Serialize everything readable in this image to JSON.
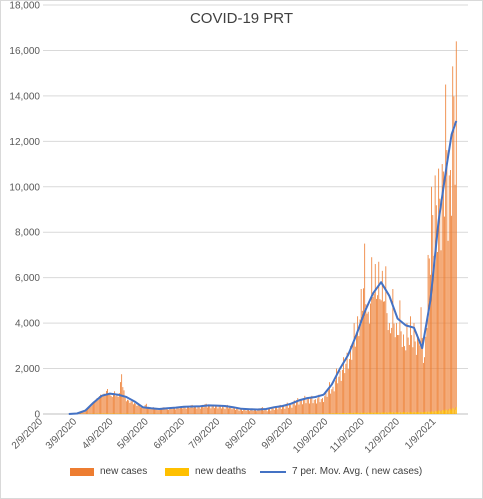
{
  "chart_data": {
    "type": "bar",
    "title": "COVID-19 PRT",
    "ylim": [
      0,
      18000
    ],
    "y_ticks": [
      "0",
      "2,000",
      "4,000",
      "6,000",
      "8,000",
      "10,000",
      "12,000",
      "14,000",
      "16,000",
      "18,000"
    ],
    "x_ticks": [
      "2/9/2020",
      "3/9/2020",
      "4/9/2020",
      "5/9/2020",
      "6/9/2020",
      "7/9/2020",
      "8/9/2020",
      "9/9/2020",
      "10/9/2020",
      "11/9/2020",
      "12/9/2020",
      "1/9/2021"
    ],
    "grid": true,
    "legend_position": "bottom",
    "series": [
      {
        "name": "new cases",
        "kind": "bar",
        "color": "#ed7d31",
        "points": [
          [
            "2020-03-02",
            0
          ],
          [
            "2020-03-05",
            5
          ],
          [
            "2020-03-08",
            20
          ],
          [
            "2020-03-11",
            40
          ],
          [
            "2020-03-14",
            80
          ],
          [
            "2020-03-17",
            150
          ],
          [
            "2020-03-20",
            350
          ],
          [
            "2020-03-23",
            550
          ],
          [
            "2020-03-26",
            700
          ],
          [
            "2020-03-29",
            850
          ],
          [
            "2020-04-01",
            900
          ],
          [
            "2020-04-04",
            1100
          ],
          [
            "2020-04-07",
            800
          ],
          [
            "2020-04-10",
            1000
          ],
          [
            "2020-04-13",
            750
          ],
          [
            "2020-04-16",
            1750
          ],
          [
            "2020-04-19",
            700
          ],
          [
            "2020-04-22",
            600
          ],
          [
            "2020-04-25",
            550
          ],
          [
            "2020-04-28",
            450
          ],
          [
            "2020-05-01",
            400
          ],
          [
            "2020-05-04",
            300
          ],
          [
            "2020-05-07",
            450
          ],
          [
            "2020-05-10",
            250
          ],
          [
            "2020-05-13",
            300
          ],
          [
            "2020-05-16",
            200
          ],
          [
            "2020-05-19",
            250
          ],
          [
            "2020-05-22",
            300
          ],
          [
            "2020-05-25",
            200
          ],
          [
            "2020-05-28",
            300
          ],
          [
            "2020-05-31",
            250
          ],
          [
            "2020-06-03",
            300
          ],
          [
            "2020-06-06",
            350
          ],
          [
            "2020-06-09",
            300
          ],
          [
            "2020-06-12",
            350
          ],
          [
            "2020-06-15",
            400
          ],
          [
            "2020-06-18",
            350
          ],
          [
            "2020-06-21",
            300
          ],
          [
            "2020-06-24",
            400
          ],
          [
            "2020-06-27",
            450
          ],
          [
            "2020-06-30",
            350
          ],
          [
            "2020-07-03",
            400
          ],
          [
            "2020-07-06",
            350
          ],
          [
            "2020-07-09",
            400
          ],
          [
            "2020-07-12",
            300
          ],
          [
            "2020-07-15",
            400
          ],
          [
            "2020-07-18",
            350
          ],
          [
            "2020-07-21",
            300
          ],
          [
            "2020-07-24",
            250
          ],
          [
            "2020-07-27",
            200
          ],
          [
            "2020-07-30",
            250
          ],
          [
            "2020-08-02",
            200
          ],
          [
            "2020-08-05",
            250
          ],
          [
            "2020-08-08",
            200
          ],
          [
            "2020-08-11",
            250
          ],
          [
            "2020-08-14",
            300
          ],
          [
            "2020-08-17",
            200
          ],
          [
            "2020-08-20",
            250
          ],
          [
            "2020-08-23",
            300
          ],
          [
            "2020-08-26",
            350
          ],
          [
            "2020-08-29",
            400
          ],
          [
            "2020-09-01",
            350
          ],
          [
            "2020-09-04",
            500
          ],
          [
            "2020-09-07",
            400
          ],
          [
            "2020-09-10",
            600
          ],
          [
            "2020-09-13",
            700
          ],
          [
            "2020-09-16",
            650
          ],
          [
            "2020-09-19",
            800
          ],
          [
            "2020-09-22",
            700
          ],
          [
            "2020-09-25",
            800
          ],
          [
            "2020-09-28",
            650
          ],
          [
            "2020-10-01",
            850
          ],
          [
            "2020-10-04",
            700
          ],
          [
            "2020-10-07",
            1000
          ],
          [
            "2020-10-10",
            1400
          ],
          [
            "2020-10-13",
            1200
          ],
          [
            "2020-10-16",
            2000
          ],
          [
            "2020-10-19",
            1900
          ],
          [
            "2020-10-22",
            2500
          ],
          [
            "2020-10-25",
            2700
          ],
          [
            "2020-10-28",
            3000
          ],
          [
            "2020-10-31",
            4000
          ],
          [
            "2020-11-03",
            4300
          ],
          [
            "2020-11-06",
            5500
          ],
          [
            "2020-11-09",
            7500
          ],
          [
            "2020-11-12",
            4500
          ],
          [
            "2020-11-15",
            6900
          ],
          [
            "2020-11-18",
            6600
          ],
          [
            "2020-11-21",
            6700
          ],
          [
            "2020-11-24",
            6300
          ],
          [
            "2020-11-27",
            6500
          ],
          [
            "2020-11-30",
            4000
          ],
          [
            "2020-12-03",
            5500
          ],
          [
            "2020-12-06",
            4000
          ],
          [
            "2020-12-09",
            5000
          ],
          [
            "2020-12-12",
            3500
          ],
          [
            "2020-12-15",
            4000
          ],
          [
            "2020-12-18",
            4300
          ],
          [
            "2020-12-21",
            4000
          ],
          [
            "2020-12-24",
            3500
          ],
          [
            "2020-12-27",
            4700
          ],
          [
            "2020-12-30",
            2500
          ],
          [
            "2021-01-02",
            7000
          ],
          [
            "2021-01-05",
            10000
          ],
          [
            "2021-01-08",
            10500
          ],
          [
            "2021-01-11",
            10800
          ],
          [
            "2021-01-14",
            11000
          ],
          [
            "2021-01-17",
            14500
          ],
          [
            "2021-01-20",
            10500
          ],
          [
            "2021-01-23",
            15300
          ],
          [
            "2021-01-26",
            16400
          ]
        ]
      },
      {
        "name": "new deaths",
        "kind": "bar",
        "color": "#ffc000",
        "points": [
          [
            "2020-03-02",
            0
          ],
          [
            "2020-04-01",
            25
          ],
          [
            "2020-05-01",
            15
          ],
          [
            "2020-06-01",
            5
          ],
          [
            "2020-07-01",
            5
          ],
          [
            "2020-08-01",
            3
          ],
          [
            "2020-09-01",
            5
          ],
          [
            "2020-10-01",
            20
          ],
          [
            "2020-11-01",
            60
          ],
          [
            "2020-12-01",
            80
          ],
          [
            "2021-01-01",
            100
          ],
          [
            "2021-01-15",
            180
          ],
          [
            "2021-01-26",
            300
          ]
        ]
      },
      {
        "name": "7 per. Mov. Avg. ( new cases)",
        "kind": "line",
        "color": "#4472c4",
        "points": [
          [
            "2020-03-02",
            0
          ],
          [
            "2020-03-09",
            20
          ],
          [
            "2020-03-16",
            150
          ],
          [
            "2020-03-23",
            500
          ],
          [
            "2020-03-30",
            800
          ],
          [
            "2020-04-06",
            900
          ],
          [
            "2020-04-13",
            850
          ],
          [
            "2020-04-20",
            750
          ],
          [
            "2020-04-27",
            550
          ],
          [
            "2020-05-04",
            300
          ],
          [
            "2020-05-11",
            250
          ],
          [
            "2020-05-18",
            220
          ],
          [
            "2020-05-25",
            250
          ],
          [
            "2020-06-01",
            280
          ],
          [
            "2020-06-08",
            320
          ],
          [
            "2020-06-15",
            330
          ],
          [
            "2020-06-22",
            340
          ],
          [
            "2020-06-29",
            380
          ],
          [
            "2020-07-06",
            370
          ],
          [
            "2020-07-13",
            350
          ],
          [
            "2020-07-20",
            300
          ],
          [
            "2020-07-27",
            230
          ],
          [
            "2020-08-03",
            210
          ],
          [
            "2020-08-10",
            200
          ],
          [
            "2020-08-17",
            220
          ],
          [
            "2020-08-24",
            300
          ],
          [
            "2020-08-31",
            350
          ],
          [
            "2020-09-07",
            450
          ],
          [
            "2020-09-14",
            600
          ],
          [
            "2020-09-21",
            700
          ],
          [
            "2020-09-28",
            750
          ],
          [
            "2020-10-05",
            850
          ],
          [
            "2020-10-12",
            1300
          ],
          [
            "2020-10-19",
            2000
          ],
          [
            "2020-10-26",
            2600
          ],
          [
            "2020-11-02",
            3500
          ],
          [
            "2020-11-09",
            4500
          ],
          [
            "2020-11-16",
            5300
          ],
          [
            "2020-11-23",
            5800
          ],
          [
            "2020-11-30",
            5200
          ],
          [
            "2020-12-07",
            4200
          ],
          [
            "2020-12-14",
            3900
          ],
          [
            "2020-12-21",
            3800
          ],
          [
            "2020-12-28",
            2900
          ],
          [
            "2021-01-04",
            5000
          ],
          [
            "2021-01-11",
            8500
          ],
          [
            "2021-01-18",
            11000
          ],
          [
            "2021-01-22",
            12300
          ],
          [
            "2021-01-26",
            12900
          ]
        ]
      }
    ]
  }
}
